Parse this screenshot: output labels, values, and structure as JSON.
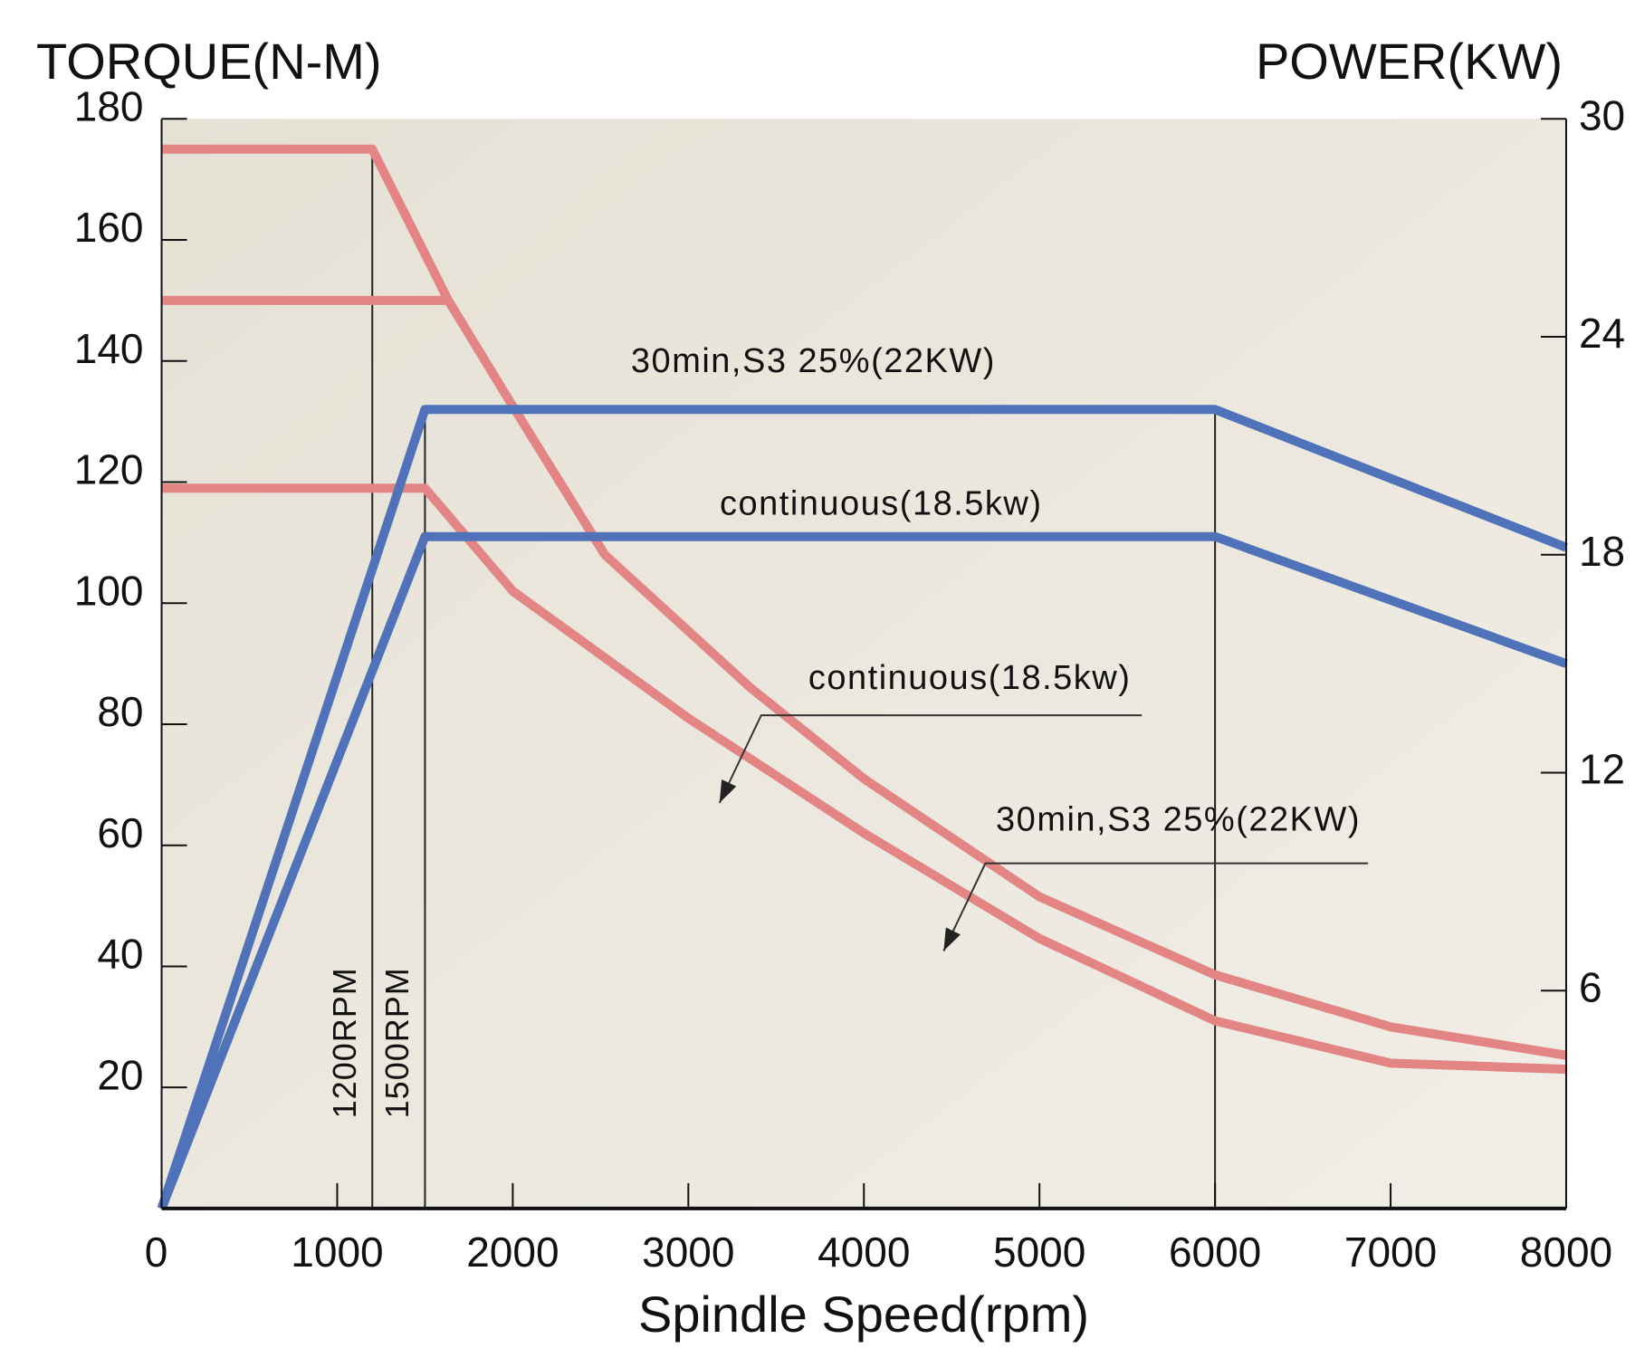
{
  "chart_data": {
    "type": "line",
    "x_label": "Spindle Speed(rpm)",
    "y_label": "TORQUE(N-M)",
    "y2_label": "POWER(KW)",
    "xlim": [
      0,
      8000
    ],
    "xticks": [
      0,
      1000,
      2000,
      3000,
      4000,
      5000,
      6000,
      7000,
      8000
    ],
    "ylim": [
      0,
      180
    ],
    "yticks": [
      20,
      40,
      60,
      80,
      100,
      120,
      140,
      160,
      180
    ],
    "y2lim": [
      0,
      30
    ],
    "y2ticks": [
      6,
      12,
      18,
      24,
      30
    ],
    "series": [
      {
        "color": "#e38585",
        "x": [
          0,
          1200,
          1633,
          1990,
          2524,
          3355,
          4000,
          5000,
          6000,
          7000,
          8000
        ],
        "values": [
          175,
          175,
          150,
          133,
          108,
          86,
          71,
          51.5,
          38.6,
          30,
          25.3
        ]
      },
      {
        "color": "#e38585",
        "x": [
          0,
          1633
        ],
        "values": [
          150,
          150
        ]
      },
      {
        "color": "#e38585",
        "x": [
          0,
          1500,
          2000,
          3000,
          4000,
          5000,
          6000,
          7000,
          8000
        ],
        "values": [
          119,
          119,
          102,
          81,
          62,
          44.6,
          31,
          24,
          23
        ]
      },
      {
        "color": "#4f72b8",
        "axis": "y2",
        "x": [
          0,
          1500,
          6000,
          8000
        ],
        "values": [
          0,
          22,
          22,
          18.2
        ]
      },
      {
        "color": "#4f72b8",
        "axis": "y2",
        "x": [
          0,
          1500,
          6000,
          8000
        ],
        "values": [
          0,
          18.5,
          18.5,
          15
        ]
      }
    ],
    "reference_lines": [
      {
        "x": 1200,
        "label": "1200RPM"
      },
      {
        "x": 1500,
        "label": "1500RPM"
      },
      {
        "x": 6000
      }
    ],
    "annotations": [
      "30min,S3 25%(22KW)",
      "continuous(18.5kw)",
      "continuous(18.5kw)",
      "30min,S3 25%(22KW)"
    ]
  }
}
